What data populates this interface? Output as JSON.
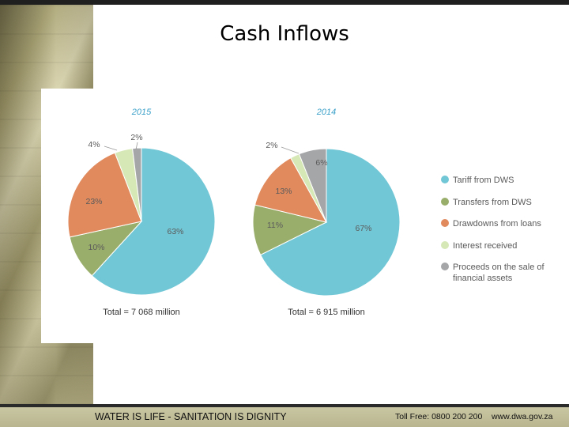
{
  "slide": {
    "title": "Cash Inflows"
  },
  "footer": {
    "slogan": "WATER IS LIFE - SANITATION IS DIGNITY",
    "phone": "Toll Free: 0800 200 200",
    "website": "www.dwa.gov.za"
  },
  "colors": {
    "tariff": "#72c7d6",
    "transfers": "#9aae6c",
    "drawdowns": "#e08a5e",
    "interest": "#d7e8b7",
    "proceeds": "#a5a6a8"
  },
  "chart_data": [
    {
      "type": "pie",
      "title": "2015",
      "total_label": "Total = 7 068 million",
      "slices": [
        {
          "name": "Tariff from DWS",
          "value": 63,
          "label": "63%"
        },
        {
          "name": "Transfers from DWS",
          "value": 10,
          "label": "10%"
        },
        {
          "name": "Drawdowns from loans",
          "value": 23,
          "label": "23%"
        },
        {
          "name": "Interest received",
          "value": 4,
          "label": "4%"
        },
        {
          "name": "Proceeds on the sale of financial assets",
          "value": 2,
          "label": "2%"
        }
      ]
    },
    {
      "type": "pie",
      "title": "2014",
      "total_label": "Total = 6 915 million",
      "slices": [
        {
          "name": "Tariff from DWS",
          "value": 67,
          "label": "67%"
        },
        {
          "name": "Transfers from DWS",
          "value": 11,
          "label": "11%"
        },
        {
          "name": "Drawdowns from loans",
          "value": 13,
          "label": "13%"
        },
        {
          "name": "Interest received",
          "value": 2,
          "label": "2%"
        },
        {
          "name": "Proceeds on the sale of financial assets",
          "value": 6,
          "label": "6%"
        }
      ]
    }
  ],
  "legend": [
    {
      "key": "tariff",
      "lines": [
        "Tariff from DWS"
      ]
    },
    {
      "key": "transfers",
      "lines": [
        "Transfers from DWS"
      ]
    },
    {
      "key": "drawdowns",
      "lines": [
        "Drawdowns from loans"
      ]
    },
    {
      "key": "interest",
      "lines": [
        "Interest received"
      ]
    },
    {
      "key": "proceeds",
      "lines": [
        "Proceeds on the sale of",
        "financial assets"
      ]
    }
  ]
}
